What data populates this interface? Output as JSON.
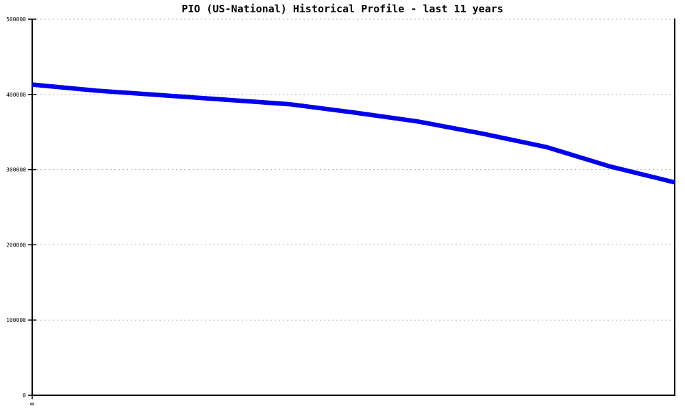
{
  "chart_data": {
    "type": "line",
    "title": "PIO (US-National) Historical Profile - last 11 years",
    "xlabel": "",
    "ylabel": "",
    "x": [
      0,
      1,
      2,
      3,
      4,
      5,
      6,
      7,
      8,
      9,
      10
    ],
    "series": [
      {
        "name": "PIO (US-National)",
        "values": [
          413000,
          405000,
          399000,
          393000,
          387000,
          376000,
          364000,
          348000,
          330000,
          304000,
          283000
        ]
      }
    ],
    "ylim": [
      0,
      500000
    ],
    "yticks": [
      0,
      100000,
      200000,
      300000,
      400000,
      500000
    ],
    "ytick_labels": [
      "0",
      "100000",
      "200000",
      "300000",
      "400000",
      "500000"
    ],
    "xtick_labels": [
      "0"
    ],
    "grid": "horizontal-dotted",
    "legend": "none",
    "line_color": "#0000ee",
    "line_width": 6.5,
    "grid_color": "#b0b0b0",
    "axis_color": "#000000",
    "background_color": "#ffffff",
    "text_color": "#000000"
  }
}
